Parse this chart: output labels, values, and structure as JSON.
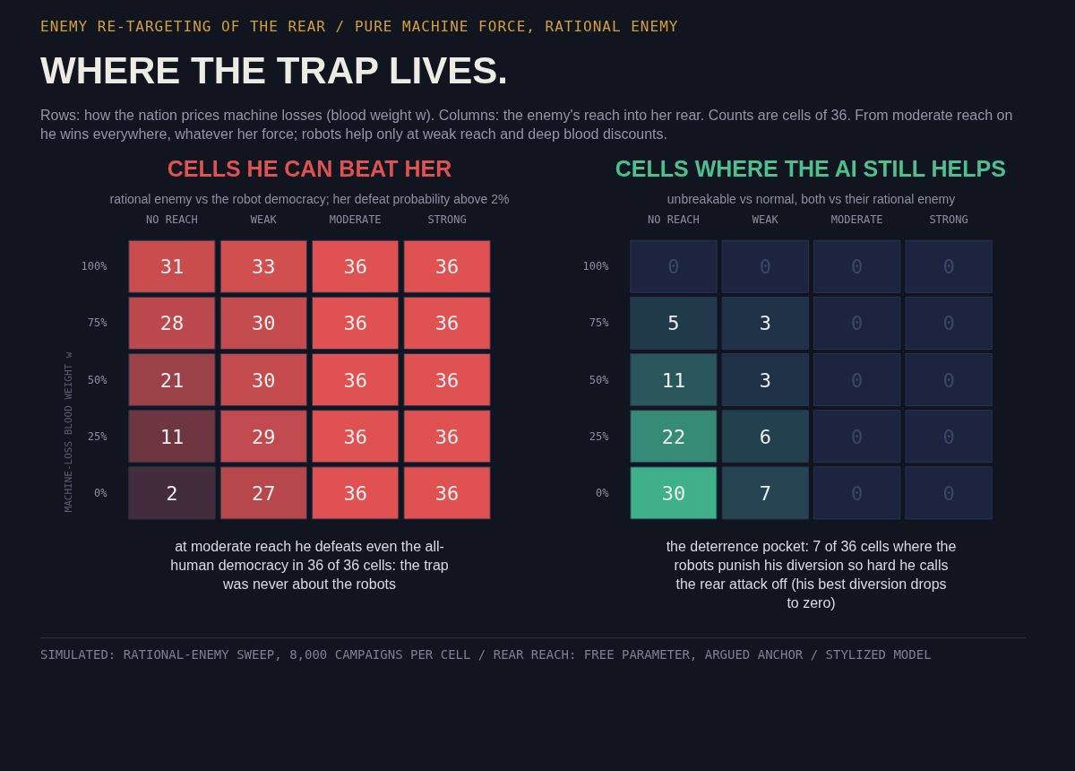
{
  "chart_data": [
    {
      "type": "heatmap",
      "title": "CELLS HE CAN BEAT HER",
      "subtitle": "rational enemy vs the robot democracy; her defeat probability above 2%",
      "ylabel": "MACHINE-LOSS BLOOD WEIGHT w",
      "categories": [
        "NO REACH",
        "WEAK",
        "MODERATE",
        "STRONG"
      ],
      "y_categories": [
        "100%",
        "75%",
        "50%",
        "25%",
        "0%"
      ],
      "cells": [
        [
          31,
          33,
          36,
          36
        ],
        [
          28,
          30,
          36,
          36
        ],
        [
          21,
          30,
          36,
          36
        ],
        [
          11,
          29,
          36,
          36
        ],
        [
          2,
          27,
          36,
          36
        ]
      ],
      "data_labels": true,
      "annotations": [
        "ENEMY RE-TARGETING OF THE REAR / PURE MACHINE FORCE, RATIONAL ENEMY",
        "WHERE THE TRAP LIVES.",
        "Rows: how the nation prices machine losses (blood weight w). Columns: the enemy's reach into her rear. Counts are cells of 36. From moderate reach on he wins everywhere, whatever her force; robots help only at weak reach and deep blood discounts.",
        "at moderate reach he defeats even the all-human democracy in 36 of 36 cells: the trap was never about the robots"
      ]
    },
    {
      "type": "heatmap",
      "title": "CELLS WHERE THE AI STILL HELPS",
      "subtitle": "unbreakable vs normal, both vs their rational enemy",
      "categories": [
        "NO REACH",
        "WEAK",
        "MODERATE",
        "STRONG"
      ],
      "y_categories": [
        "100%",
        "75%",
        "50%",
        "25%",
        "0%"
      ],
      "cells": [
        [
          0,
          0,
          0,
          0
        ],
        [
          5,
          3,
          0,
          0
        ],
        [
          11,
          3,
          0,
          0
        ],
        [
          22,
          6,
          0,
          0
        ],
        [
          30,
          7,
          0,
          0
        ]
      ],
      "data_labels": true,
      "annotations": [
        "the deterrence pocket: 7 of 36 cells where the robots punish his diversion so hard he calls the rear attack off (his best diversion drops to zero)",
        "SIMULATED: RATIONAL-ENEMY SWEEP, 8,000 CAMPAIGNS PER CELL / REAR REACH: FREE PARAMETER, ARGUED ANCHOR / STYLIZED MODEL"
      ]
    }
  ]
}
